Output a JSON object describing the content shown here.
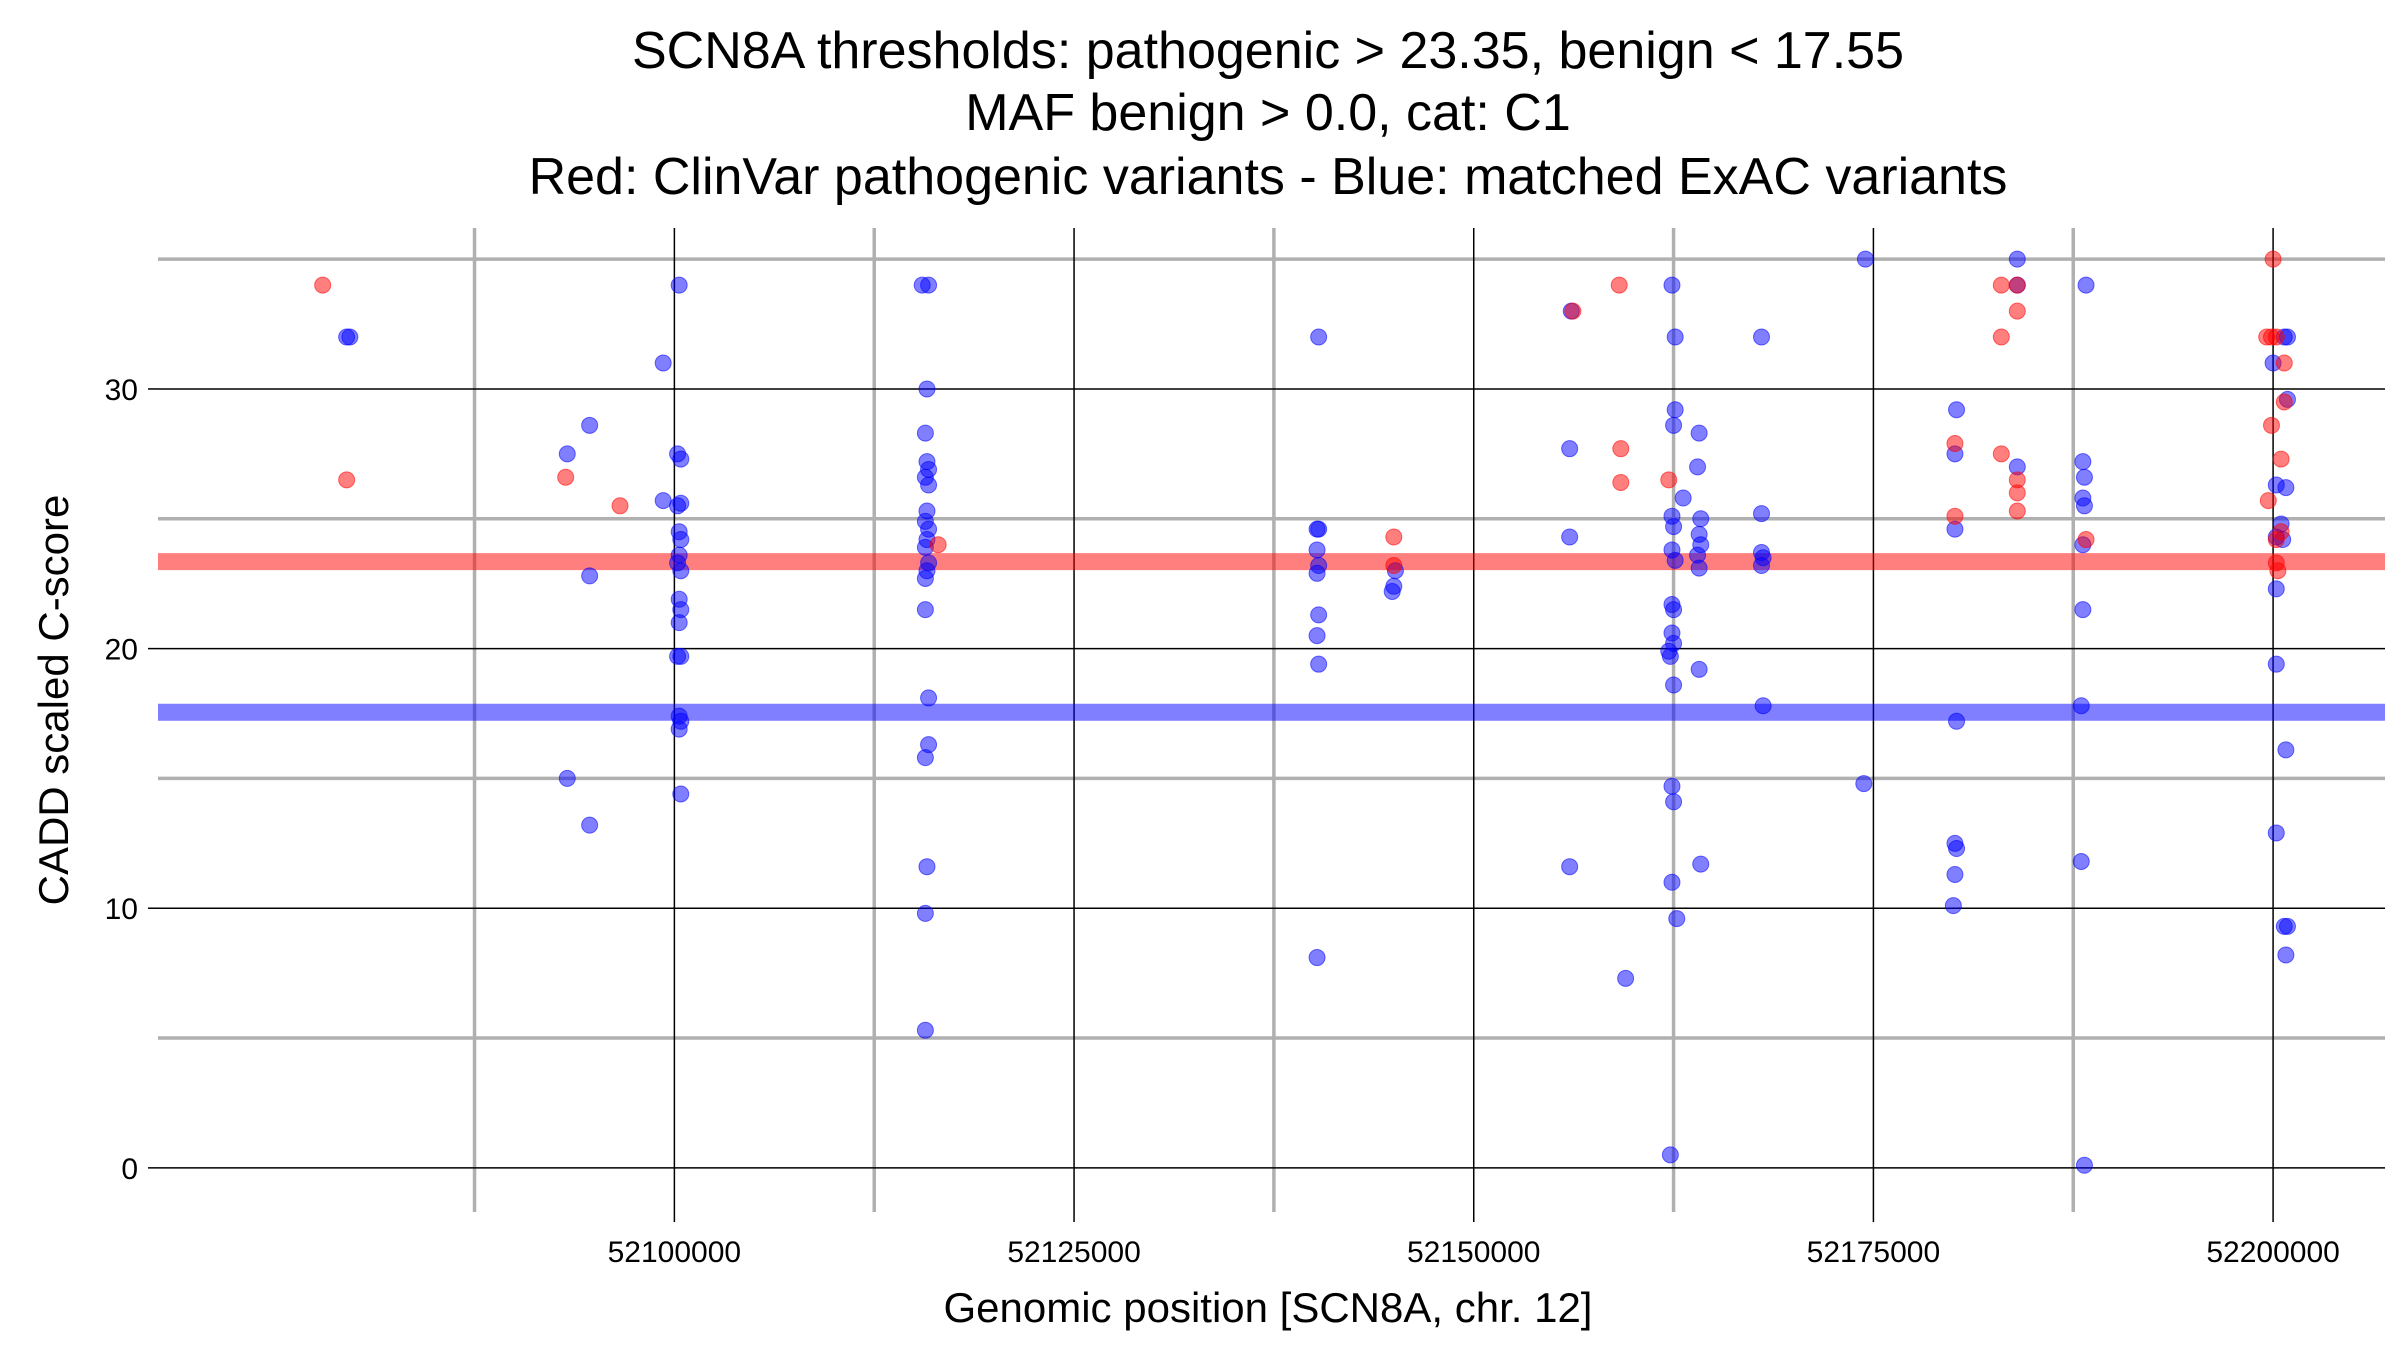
{
  "chart_data": {
    "type": "scatter",
    "title_lines": [
      "SCN8A thresholds: pathogenic > 23.35, benign < 17.55",
      "MAF benign > 0.0, cat: C1",
      "Red: ClinVar pathogenic variants - Blue: matched ExAC variants"
    ],
    "xlabel": "Genomic position [SCN8A, chr. 12]",
    "ylabel": "CADD scaled C-score",
    "xlim": [
      52067700,
      52207000
    ],
    "ylim": [
      -1.7,
      36.2
    ],
    "x_ticks": [
      52100000,
      52125000,
      52150000,
      52175000,
      52200000
    ],
    "x_tick_labels": [
      "52100000",
      "52125000",
      "52150000",
      "52175000",
      "52200000"
    ],
    "y_ticks": [
      0,
      10,
      20,
      30
    ],
    "y_tick_labels": [
      "0",
      "10",
      "20",
      "30"
    ],
    "x_minor_gridlines": [
      52087500,
      52112500,
      52137500,
      52162500,
      52187500
    ],
    "y_minor_gridlines": [
      5,
      15,
      25,
      35
    ],
    "grid": true,
    "colors": {
      "pathogenic": "#ff0000",
      "benign": "#0000ff",
      "grid_major": "#000000",
      "grid_minor": "#b0b0b0"
    },
    "thresholds": [
      {
        "name": "pathogenic",
        "value": 23.35,
        "color": "#ff0000"
      },
      {
        "name": "benign",
        "value": 17.55,
        "color": "#0000ff"
      }
    ],
    "series": [
      {
        "color": "#ff0000",
        "points": [
          {
            "x": 52078000,
            "y": 34.0
          },
          {
            "x": 52079500,
            "y": 26.5
          },
          {
            "x": 52093200,
            "y": 26.6
          },
          {
            "x": 52096600,
            "y": 25.5
          },
          {
            "x": 52116500,
            "y": 24.0
          },
          {
            "x": 52145000,
            "y": 24.3
          },
          {
            "x": 52145000,
            "y": 23.2
          },
          {
            "x": 52156200,
            "y": 33.0
          },
          {
            "x": 52159100,
            "y": 34.0
          },
          {
            "x": 52159200,
            "y": 27.7
          },
          {
            "x": 52159200,
            "y": 26.4
          },
          {
            "x": 52162200,
            "y": 26.5
          },
          {
            "x": 52180100,
            "y": 27.9
          },
          {
            "x": 52180100,
            "y": 25.1
          },
          {
            "x": 52183000,
            "y": 34.0
          },
          {
            "x": 52183000,
            "y": 32.0
          },
          {
            "x": 52183000,
            "y": 27.5
          },
          {
            "x": 52184000,
            "y": 34.0
          },
          {
            "x": 52184000,
            "y": 33.0
          },
          {
            "x": 52184000,
            "y": 26.5
          },
          {
            "x": 52184000,
            "y": 26.0
          },
          {
            "x": 52184000,
            "y": 25.3
          },
          {
            "x": 52188300,
            "y": 24.2
          },
          {
            "x": 52200000,
            "y": 35.0
          },
          {
            "x": 52199600,
            "y": 32.0
          },
          {
            "x": 52199900,
            "y": 32.0
          },
          {
            "x": 52200200,
            "y": 32.0
          },
          {
            "x": 52200700,
            "y": 31.0
          },
          {
            "x": 52200700,
            "y": 29.5
          },
          {
            "x": 52199900,
            "y": 28.6
          },
          {
            "x": 52200500,
            "y": 27.3
          },
          {
            "x": 52199700,
            "y": 25.7
          },
          {
            "x": 52200500,
            "y": 24.5
          },
          {
            "x": 52200200,
            "y": 24.2
          },
          {
            "x": 52200200,
            "y": 23.3
          },
          {
            "x": 52200300,
            "y": 23.0
          }
        ]
      },
      {
        "color": "#0000ff",
        "points": [
          {
            "x": 52079500,
            "y": 32.0
          },
          {
            "x": 52079700,
            "y": 32.0
          },
          {
            "x": 52093300,
            "y": 27.5
          },
          {
            "x": 52094700,
            "y": 28.6
          },
          {
            "x": 52094700,
            "y": 22.8
          },
          {
            "x": 52093300,
            "y": 15.0
          },
          {
            "x": 52094700,
            "y": 13.2
          },
          {
            "x": 52099300,
            "y": 31.0
          },
          {
            "x": 52099300,
            "y": 25.7
          },
          {
            "x": 52100300,
            "y": 34.0
          },
          {
            "x": 52100200,
            "y": 27.5
          },
          {
            "x": 52100400,
            "y": 27.3
          },
          {
            "x": 52100200,
            "y": 25.5
          },
          {
            "x": 52100400,
            "y": 25.6
          },
          {
            "x": 52100300,
            "y": 24.5
          },
          {
            "x": 52100400,
            "y": 24.2
          },
          {
            "x": 52100300,
            "y": 23.6
          },
          {
            "x": 52100200,
            "y": 23.3
          },
          {
            "x": 52100400,
            "y": 23.0
          },
          {
            "x": 52100300,
            "y": 21.9
          },
          {
            "x": 52100400,
            "y": 21.5
          },
          {
            "x": 52100300,
            "y": 21.0
          },
          {
            "x": 52100200,
            "y": 19.7
          },
          {
            "x": 52100400,
            "y": 19.7
          },
          {
            "x": 52100300,
            "y": 17.4
          },
          {
            "x": 52100400,
            "y": 17.2
          },
          {
            "x": 52100300,
            "y": 16.9
          },
          {
            "x": 52100400,
            "y": 14.4
          },
          {
            "x": 52115500,
            "y": 34.0
          },
          {
            "x": 52115900,
            "y": 34.0
          },
          {
            "x": 52115800,
            "y": 30.0
          },
          {
            "x": 52115700,
            "y": 28.3
          },
          {
            "x": 52115800,
            "y": 27.2
          },
          {
            "x": 52115900,
            "y": 26.9
          },
          {
            "x": 52115700,
            "y": 26.6
          },
          {
            "x": 52115900,
            "y": 26.3
          },
          {
            "x": 52115800,
            "y": 25.3
          },
          {
            "x": 52115700,
            "y": 24.9
          },
          {
            "x": 52115900,
            "y": 24.6
          },
          {
            "x": 52115800,
            "y": 24.2
          },
          {
            "x": 52115700,
            "y": 23.9
          },
          {
            "x": 52115900,
            "y": 23.3
          },
          {
            "x": 52115800,
            "y": 23.0
          },
          {
            "x": 52115700,
            "y": 22.7
          },
          {
            "x": 52115700,
            "y": 21.5
          },
          {
            "x": 52115900,
            "y": 18.1
          },
          {
            "x": 52115900,
            "y": 16.3
          },
          {
            "x": 52115700,
            "y": 15.8
          },
          {
            "x": 52115800,
            "y": 11.6
          },
          {
            "x": 52115700,
            "y": 9.8
          },
          {
            "x": 52115700,
            "y": 5.3
          },
          {
            "x": 52140300,
            "y": 32.0
          },
          {
            "x": 52140200,
            "y": 24.6
          },
          {
            "x": 52140300,
            "y": 24.6
          },
          {
            "x": 52140200,
            "y": 23.8
          },
          {
            "x": 52140300,
            "y": 23.2
          },
          {
            "x": 52140200,
            "y": 22.9
          },
          {
            "x": 52140300,
            "y": 21.3
          },
          {
            "x": 52140200,
            "y": 20.5
          },
          {
            "x": 52140300,
            "y": 19.4
          },
          {
            "x": 52140200,
            "y": 8.1
          },
          {
            "x": 52145100,
            "y": 23.0
          },
          {
            "x": 52145000,
            "y": 22.4
          },
          {
            "x": 52144900,
            "y": 22.2
          },
          {
            "x": 52156100,
            "y": 33.0
          },
          {
            "x": 52156000,
            "y": 27.7
          },
          {
            "x": 52156000,
            "y": 24.3
          },
          {
            "x": 52156000,
            "y": 11.6
          },
          {
            "x": 52159500,
            "y": 7.3
          },
          {
            "x": 52162400,
            "y": 34.0
          },
          {
            "x": 52162600,
            "y": 32.0
          },
          {
            "x": 52162600,
            "y": 29.2
          },
          {
            "x": 52162500,
            "y": 28.6
          },
          {
            "x": 52164100,
            "y": 28.3
          },
          {
            "x": 52164000,
            "y": 27.0
          },
          {
            "x": 52163100,
            "y": 25.8
          },
          {
            "x": 52162400,
            "y": 25.1
          },
          {
            "x": 52164200,
            "y": 25.0
          },
          {
            "x": 52162500,
            "y": 24.7
          },
          {
            "x": 52164100,
            "y": 24.4
          },
          {
            "x": 52164200,
            "y": 24.0
          },
          {
            "x": 52162400,
            "y": 23.8
          },
          {
            "x": 52164000,
            "y": 23.6
          },
          {
            "x": 52162600,
            "y": 23.4
          },
          {
            "x": 52164100,
            "y": 23.1
          },
          {
            "x": 52162400,
            "y": 21.7
          },
          {
            "x": 52162500,
            "y": 21.5
          },
          {
            "x": 52162400,
            "y": 20.6
          },
          {
            "x": 52162500,
            "y": 20.2
          },
          {
            "x": 52162200,
            "y": 19.9
          },
          {
            "x": 52162300,
            "y": 19.7
          },
          {
            "x": 52164100,
            "y": 19.2
          },
          {
            "x": 52162500,
            "y": 18.6
          },
          {
            "x": 52162400,
            "y": 14.7
          },
          {
            "x": 52162500,
            "y": 14.1
          },
          {
            "x": 52164200,
            "y": 11.7
          },
          {
            "x": 52162400,
            "y": 11.0
          },
          {
            "x": 52162700,
            "y": 9.6
          },
          {
            "x": 52162300,
            "y": 0.5
          },
          {
            "x": 52168000,
            "y": 32.0
          },
          {
            "x": 52168000,
            "y": 25.2
          },
          {
            "x": 52168000,
            "y": 23.7
          },
          {
            "x": 52168100,
            "y": 23.5
          },
          {
            "x": 52168000,
            "y": 23.2
          },
          {
            "x": 52168100,
            "y": 17.8
          },
          {
            "x": 52174500,
            "y": 35.0
          },
          {
            "x": 52174400,
            "y": 14.8
          },
          {
            "x": 52180200,
            "y": 29.2
          },
          {
            "x": 52180100,
            "y": 27.5
          },
          {
            "x": 52180100,
            "y": 24.6
          },
          {
            "x": 52180200,
            "y": 17.2
          },
          {
            "x": 52180100,
            "y": 12.5
          },
          {
            "x": 52180200,
            "y": 12.3
          },
          {
            "x": 52180100,
            "y": 11.3
          },
          {
            "x": 52180000,
            "y": 10.1
          },
          {
            "x": 52184000,
            "y": 35.0
          },
          {
            "x": 52184000,
            "y": 34.0
          },
          {
            "x": 52184000,
            "y": 27.0
          },
          {
            "x": 52188300,
            "y": 34.0
          },
          {
            "x": 52188100,
            "y": 27.2
          },
          {
            "x": 52188200,
            "y": 26.6
          },
          {
            "x": 52188100,
            "y": 25.8
          },
          {
            "x": 52188200,
            "y": 25.5
          },
          {
            "x": 52188100,
            "y": 24.0
          },
          {
            "x": 52188100,
            "y": 21.5
          },
          {
            "x": 52188000,
            "y": 17.8
          },
          {
            "x": 52188000,
            "y": 11.8
          },
          {
            "x": 52188200,
            "y": 0.1
          },
          {
            "x": 52200700,
            "y": 32.0
          },
          {
            "x": 52200900,
            "y": 32.0
          },
          {
            "x": 52200000,
            "y": 31.0
          },
          {
            "x": 52200900,
            "y": 29.6
          },
          {
            "x": 52200200,
            "y": 26.3
          },
          {
            "x": 52200800,
            "y": 26.2
          },
          {
            "x": 52200500,
            "y": 24.8
          },
          {
            "x": 52200200,
            "y": 24.3
          },
          {
            "x": 52200600,
            "y": 24.2
          },
          {
            "x": 52200200,
            "y": 22.3
          },
          {
            "x": 52200200,
            "y": 19.4
          },
          {
            "x": 52200200,
            "y": 12.9
          },
          {
            "x": 52200800,
            "y": 16.1
          },
          {
            "x": 52200700,
            "y": 9.3
          },
          {
            "x": 52200900,
            "y": 9.3
          },
          {
            "x": 52200800,
            "y": 8.2
          }
        ]
      }
    ]
  }
}
